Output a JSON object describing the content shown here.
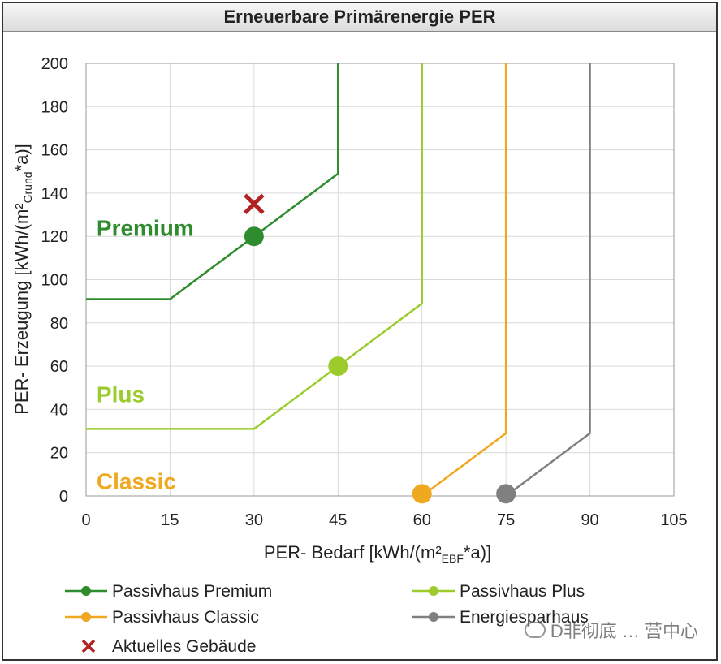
{
  "chart_data": {
    "type": "line",
    "title": "Erneuerbare Primärenergie PER",
    "xlabel": "PER- Bedarf  [kWh/(m²",
    "xlabel_sub": "EBF",
    "xlabel_end": "*a)]",
    "ylabel": "PER- Erzeugung  [kWh/(m²",
    "ylabel_sub": "Grund",
    "ylabel_end": "*a)]",
    "xlim": [
      0,
      105
    ],
    "ylim": [
      0,
      200
    ],
    "xticks": [
      0,
      15,
      30,
      45,
      60,
      75,
      90,
      105
    ],
    "yticks": [
      0,
      20,
      40,
      60,
      80,
      100,
      120,
      140,
      160,
      180,
      200
    ],
    "grid": true,
    "series": [
      {
        "name": "Passivhaus Premium",
        "color": "#2e8b2e",
        "line": [
          [
            0,
            91
          ],
          [
            15,
            91
          ],
          [
            45,
            149
          ],
          [
            45,
            200
          ]
        ],
        "marker": [
          30,
          120
        ]
      },
      {
        "name": "Passivhaus Plus",
        "color": "#9ccc2c",
        "line": [
          [
            0,
            31
          ],
          [
            30,
            31
          ],
          [
            60,
            89
          ],
          [
            60,
            200
          ]
        ],
        "marker": [
          45,
          60
        ]
      },
      {
        "name": "Passivhaus Classic",
        "color": "#f0a820",
        "line": [
          [
            60,
            0
          ],
          [
            75,
            29
          ],
          [
            75,
            200
          ]
        ],
        "marker": [
          60,
          1
        ]
      },
      {
        "name": "Energiesparhaus",
        "color": "#808080",
        "line": [
          [
            75,
            0
          ],
          [
            90,
            29
          ],
          [
            90,
            200
          ]
        ],
        "marker": [
          75,
          1
        ]
      }
    ],
    "current_building": {
      "label": "Aktuelles Gebäude",
      "x": 30,
      "y": 135,
      "color": "#b22222"
    },
    "annotations": [
      {
        "text": "Premium",
        "x": 1,
        "y": 124,
        "color": "#2e8b2e"
      },
      {
        "text": "Plus",
        "x": 1,
        "y": 47,
        "color": "#9ccc2c"
      },
      {
        "text": "Classic",
        "x": 1,
        "y": 7,
        "color": "#f0a820"
      }
    ],
    "legend": "bottom"
  },
  "watermark": "D非彻底 … 营中心"
}
